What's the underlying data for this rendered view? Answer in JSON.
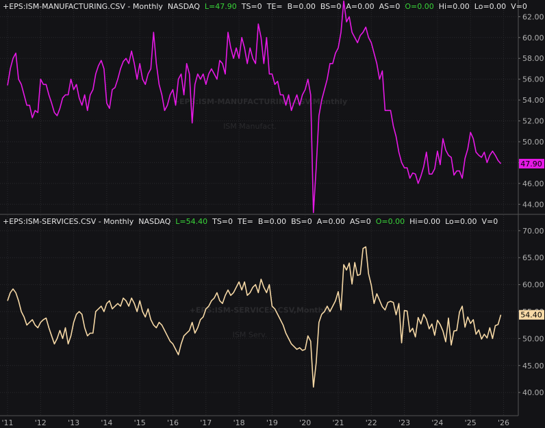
{
  "chart_data": [
    {
      "type": "line",
      "header": [
        {
          "text": "+EPS:ISM-MANUFACTURING.CSV - Monthly",
          "color": "#e6e6e6"
        },
        {
          "text": "NASDAQ",
          "color": "#e6e6e6"
        },
        {
          "text": "L=47.90",
          "color": "#39d339"
        },
        {
          "text": "TS=0",
          "color": "#e6e6e6"
        },
        {
          "text": "TE=",
          "color": "#e6e6e6"
        },
        {
          "text": "B=0.00",
          "color": "#e6e6e6"
        },
        {
          "text": "BS=0",
          "color": "#e6e6e6"
        },
        {
          "text": "A=0.00",
          "color": "#e6e6e6"
        },
        {
          "text": "AS=0",
          "color": "#e6e6e6"
        },
        {
          "text": "O=0.00",
          "color": "#39d339"
        },
        {
          "text": "Hi=0.00",
          "color": "#e6e6e6"
        },
        {
          "text": "Lo=0.00",
          "color": "#e6e6e6"
        },
        {
          "text": "V=0",
          "color": "#e6e6e6"
        }
      ],
      "watermark": "+EPS:ISM-MANUFACTURING.CSV,Monthly",
      "watermark_sub": "ISM Manufact.",
      "last_value_label": "47.90",
      "series": [
        {
          "name": "ISM Manufacturing",
          "color": "#e619e6",
          "values": [
            55.4,
            57,
            58,
            58.5,
            56,
            55.5,
            54.5,
            53.5,
            53.5,
            52.3,
            53,
            52.8,
            56,
            55.5,
            55.5,
            54.5,
            53.7,
            52.8,
            52.5,
            53.2,
            54.2,
            54.5,
            54.5,
            56,
            55,
            55.5,
            54.2,
            53.5,
            54.5,
            53,
            54.5,
            55,
            56.5,
            57.3,
            57.8,
            57,
            53.7,
            53.2,
            55,
            55.2,
            56,
            57,
            57.7,
            58,
            57.5,
            58.7,
            57.5,
            56,
            57.5,
            56,
            55.5,
            56.5,
            57,
            60.5,
            57.5,
            55.5,
            54.5,
            53,
            53.5,
            54.5,
            55,
            53.5,
            56,
            56.5,
            54.5,
            57.5,
            56.5,
            51.8,
            55.5,
            56.5,
            56,
            56.5,
            55.5,
            56.5,
            57,
            56.5,
            56,
            57.8,
            57.5,
            56.5,
            60.5,
            59,
            58,
            59,
            58,
            60,
            59,
            57.5,
            59,
            58,
            57.5,
            61.3,
            60,
            57.5,
            60,
            56.5,
            56.5,
            55.5,
            55.8,
            54.5,
            54.5,
            53.5,
            54.5,
            53,
            53.8,
            54.5,
            53.5,
            54.5,
            55,
            56,
            54.5,
            43.2,
            47.5,
            52.5,
            54,
            55,
            56,
            57.5,
            57.5,
            58.5,
            59,
            60.5,
            63.5,
            61.5,
            62,
            60.5,
            60,
            59.5,
            60.2,
            60.5,
            61,
            60,
            59.5,
            58.5,
            57.5,
            56,
            56.8,
            53,
            53,
            53,
            51.5,
            50.5,
            49,
            48,
            47.5,
            47.5,
            46.5,
            47,
            46.9,
            46,
            46.7,
            47.6,
            49,
            46.9,
            46.9,
            47.4,
            49.1,
            47.8,
            50.3,
            49.2,
            48.7,
            48.5,
            46.8,
            47.2,
            47.2,
            46.5,
            48.4,
            49.3,
            50.9,
            50.3,
            49,
            48.7,
            48.5,
            49,
            48,
            48.7,
            49.1,
            48.7,
            48.2,
            47.9,
            null
          ]
        }
      ],
      "ylim": [
        43.1,
        63.6
      ],
      "yticks": [
        {
          "value": 44,
          "label": "44.00"
        },
        {
          "value": 46,
          "label": "46.00"
        },
        {
          "value": 48,
          "label": "48.00"
        },
        {
          "value": 50,
          "label": "50.00"
        },
        {
          "value": 52,
          "label": "52.00"
        },
        {
          "value": 54,
          "label": "54.00"
        },
        {
          "value": 56,
          "label": "56.00"
        },
        {
          "value": 58,
          "label": "58.00"
        },
        {
          "value": 60,
          "label": "60.00"
        },
        {
          "value": 62,
          "label": "62.00"
        }
      ],
      "grid": true
    },
    {
      "type": "line",
      "header": [
        {
          "text": "+EPS:ISM-SERVICES.CSV - Monthly",
          "color": "#e6e6e6"
        },
        {
          "text": "NASDAQ",
          "color": "#e6e6e6"
        },
        {
          "text": "L=54.40",
          "color": "#39d339"
        },
        {
          "text": "TS=0",
          "color": "#e6e6e6"
        },
        {
          "text": "TE=",
          "color": "#e6e6e6"
        },
        {
          "text": "B=0.00",
          "color": "#e6e6e6"
        },
        {
          "text": "BS=0",
          "color": "#e6e6e6"
        },
        {
          "text": "A=0.00",
          "color": "#e6e6e6"
        },
        {
          "text": "AS=0",
          "color": "#e6e6e6"
        },
        {
          "text": "O=0.00",
          "color": "#39d339"
        },
        {
          "text": "Hi=0.00",
          "color": "#e6e6e6"
        },
        {
          "text": "Lo=0.00",
          "color": "#e6e6e6"
        },
        {
          "text": "V=0",
          "color": "#e6e6e6"
        }
      ],
      "watermark": "+EPS:ISM-SERVICES.CSV,Monthly",
      "watermark_sub": "ISM Serv.",
      "last_value_label": "54.40",
      "categories": [
        "'11",
        null,
        null,
        null,
        null,
        null,
        null,
        null,
        null,
        null,
        null,
        null,
        "'12",
        null,
        null,
        null,
        null,
        null,
        null,
        null,
        null,
        null,
        null,
        null,
        "'13",
        null,
        null,
        null,
        null,
        null,
        null,
        null,
        null,
        null,
        null,
        null,
        "'14",
        null,
        null,
        null,
        null,
        null,
        null,
        null,
        null,
        null,
        null,
        null,
        "'15",
        null,
        null,
        null,
        null,
        null,
        null,
        null,
        null,
        null,
        null,
        null,
        "'16",
        null,
        null,
        null,
        null,
        null,
        null,
        null,
        null,
        null,
        null,
        null,
        "'17",
        null,
        null,
        null,
        null,
        null,
        null,
        null,
        null,
        null,
        null,
        null,
        "'18",
        null,
        null,
        null,
        null,
        null,
        null,
        null,
        null,
        null,
        null,
        null,
        "'19",
        null,
        null,
        null,
        null,
        null,
        null,
        null,
        null,
        null,
        null,
        null,
        "'20",
        null,
        null,
        null,
        null,
        null,
        null,
        null,
        null,
        null,
        null,
        null,
        "'21",
        null,
        null,
        null,
        null,
        null,
        null,
        null,
        null,
        null,
        null,
        null,
        "'22",
        null,
        null,
        null,
        null,
        null,
        null,
        null,
        null,
        null,
        null,
        null,
        "'23",
        null,
        null,
        null,
        null,
        null,
        null,
        null,
        null,
        null,
        null,
        null,
        "'24",
        null,
        null,
        null,
        null,
        null,
        null,
        null,
        null,
        null,
        null,
        null,
        "'25",
        null,
        null,
        null,
        null,
        null,
        null,
        null,
        null,
        null,
        null,
        null,
        "'26"
      ],
      "series": [
        {
          "name": "ISM Services",
          "color": "#f7d9a6",
          "values": [
            57,
            58.5,
            59.2,
            58.5,
            57,
            55,
            54,
            52.5,
            53,
            53.5,
            52.5,
            52,
            53,
            53.5,
            53.8,
            52,
            50.5,
            49,
            50,
            51.5,
            50,
            52,
            49,
            50.5,
            53,
            54.5,
            55,
            54.5,
            52,
            50.5,
            51,
            51,
            55,
            55.5,
            56,
            55,
            56.5,
            57,
            55.5,
            56,
            56.5,
            56,
            57.5,
            57,
            56,
            57.5,
            56.5,
            55,
            57,
            55,
            54,
            55.5,
            53.5,
            52.5,
            52,
            53,
            52.5,
            51.5,
            50.5,
            49.5,
            49,
            48,
            47,
            49,
            50.5,
            51,
            51.5,
            53,
            51,
            52,
            53.5,
            54,
            55.5,
            56,
            57,
            57.5,
            58.5,
            57,
            56.5,
            58,
            59,
            58,
            58.5,
            59.5,
            60.5,
            59,
            60.5,
            58,
            58.5,
            59.5,
            60,
            58.5,
            61,
            59.5,
            58.5,
            60,
            56,
            55.5,
            54.5,
            53.5,
            52.5,
            51,
            50,
            49,
            48.5,
            48,
            48.3,
            47.8,
            48,
            50.5,
            49.5,
            41,
            45.5,
            53,
            54.5,
            55,
            56,
            55,
            56,
            57,
            58.7,
            55.3,
            63.7,
            62.7,
            64,
            60.1,
            64.1,
            61.7,
            61.9,
            66.7,
            67,
            62,
            59.9,
            56.5,
            58.3,
            57.1,
            55.9,
            55.3,
            56.7,
            56.9,
            56.7,
            54.4,
            56.5,
            49.2,
            55.2,
            55.1,
            51.2,
            51.9,
            50.3,
            53.9,
            52.7,
            54.5,
            53.6,
            51.8,
            52.7,
            50.6,
            53.4,
            52.6,
            51.4,
            49.4,
            53.8,
            48.8,
            51.4,
            51.5,
            54.9,
            56,
            52.1,
            54,
            52.8,
            53.5,
            50.8,
            51.6,
            49.9,
            50.8,
            50.1,
            52,
            50,
            52.4,
            52.6,
            54.4,
            null
          ]
        }
      ],
      "ylim": [
        35.7,
        72.9
      ],
      "yticks": [
        {
          "value": 40,
          "label": "40.00"
        },
        {
          "value": 45,
          "label": "45.00"
        },
        {
          "value": 50,
          "label": "50.00"
        },
        {
          "value": 55,
          "label": "55.00"
        },
        {
          "value": 60,
          "label": "60.00"
        },
        {
          "value": 65,
          "label": "65.00"
        },
        {
          "value": 70,
          "label": "70.00"
        }
      ],
      "grid": true
    }
  ]
}
